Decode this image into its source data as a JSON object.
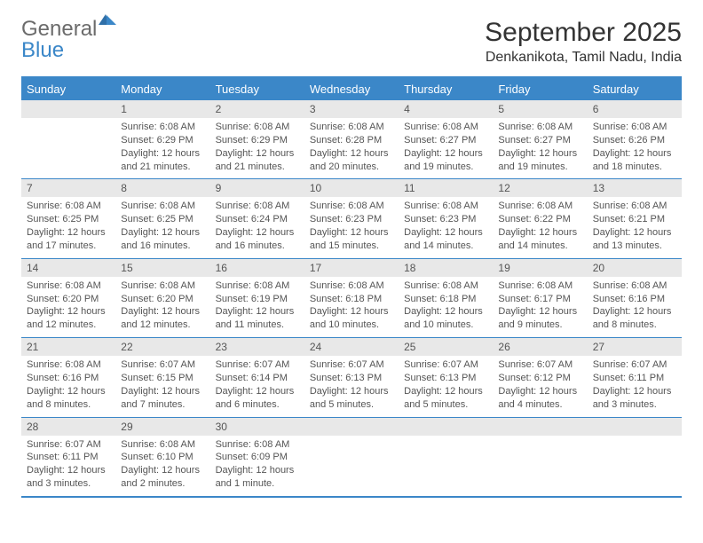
{
  "brand": {
    "word1": "General",
    "word2": "Blue"
  },
  "title": "September 2025",
  "location": "Denkanikota, Tamil Nadu, India",
  "colors": {
    "accent": "#3b87c8",
    "header_bg": "#3b87c8",
    "header_text": "#ffffff",
    "daynum_bg": "#e8e8e8",
    "body_text": "#555555",
    "title_text": "#333333"
  },
  "weekdays": [
    "Sunday",
    "Monday",
    "Tuesday",
    "Wednesday",
    "Thursday",
    "Friday",
    "Saturday"
  ],
  "weeks": [
    [
      {
        "n": "",
        "lines": []
      },
      {
        "n": "1",
        "lines": [
          "Sunrise: 6:08 AM",
          "Sunset: 6:29 PM",
          "Daylight: 12 hours and 21 minutes."
        ]
      },
      {
        "n": "2",
        "lines": [
          "Sunrise: 6:08 AM",
          "Sunset: 6:29 PM",
          "Daylight: 12 hours and 21 minutes."
        ]
      },
      {
        "n": "3",
        "lines": [
          "Sunrise: 6:08 AM",
          "Sunset: 6:28 PM",
          "Daylight: 12 hours and 20 minutes."
        ]
      },
      {
        "n": "4",
        "lines": [
          "Sunrise: 6:08 AM",
          "Sunset: 6:27 PM",
          "Daylight: 12 hours and 19 minutes."
        ]
      },
      {
        "n": "5",
        "lines": [
          "Sunrise: 6:08 AM",
          "Sunset: 6:27 PM",
          "Daylight: 12 hours and 19 minutes."
        ]
      },
      {
        "n": "6",
        "lines": [
          "Sunrise: 6:08 AM",
          "Sunset: 6:26 PM",
          "Daylight: 12 hours and 18 minutes."
        ]
      }
    ],
    [
      {
        "n": "7",
        "lines": [
          "Sunrise: 6:08 AM",
          "Sunset: 6:25 PM",
          "Daylight: 12 hours and 17 minutes."
        ]
      },
      {
        "n": "8",
        "lines": [
          "Sunrise: 6:08 AM",
          "Sunset: 6:25 PM",
          "Daylight: 12 hours and 16 minutes."
        ]
      },
      {
        "n": "9",
        "lines": [
          "Sunrise: 6:08 AM",
          "Sunset: 6:24 PM",
          "Daylight: 12 hours and 16 minutes."
        ]
      },
      {
        "n": "10",
        "lines": [
          "Sunrise: 6:08 AM",
          "Sunset: 6:23 PM",
          "Daylight: 12 hours and 15 minutes."
        ]
      },
      {
        "n": "11",
        "lines": [
          "Sunrise: 6:08 AM",
          "Sunset: 6:23 PM",
          "Daylight: 12 hours and 14 minutes."
        ]
      },
      {
        "n": "12",
        "lines": [
          "Sunrise: 6:08 AM",
          "Sunset: 6:22 PM",
          "Daylight: 12 hours and 14 minutes."
        ]
      },
      {
        "n": "13",
        "lines": [
          "Sunrise: 6:08 AM",
          "Sunset: 6:21 PM",
          "Daylight: 12 hours and 13 minutes."
        ]
      }
    ],
    [
      {
        "n": "14",
        "lines": [
          "Sunrise: 6:08 AM",
          "Sunset: 6:20 PM",
          "Daylight: 12 hours and 12 minutes."
        ]
      },
      {
        "n": "15",
        "lines": [
          "Sunrise: 6:08 AM",
          "Sunset: 6:20 PM",
          "Daylight: 12 hours and 12 minutes."
        ]
      },
      {
        "n": "16",
        "lines": [
          "Sunrise: 6:08 AM",
          "Sunset: 6:19 PM",
          "Daylight: 12 hours and 11 minutes."
        ]
      },
      {
        "n": "17",
        "lines": [
          "Sunrise: 6:08 AM",
          "Sunset: 6:18 PM",
          "Daylight: 12 hours and 10 minutes."
        ]
      },
      {
        "n": "18",
        "lines": [
          "Sunrise: 6:08 AM",
          "Sunset: 6:18 PM",
          "Daylight: 12 hours and 10 minutes."
        ]
      },
      {
        "n": "19",
        "lines": [
          "Sunrise: 6:08 AM",
          "Sunset: 6:17 PM",
          "Daylight: 12 hours and 9 minutes."
        ]
      },
      {
        "n": "20",
        "lines": [
          "Sunrise: 6:08 AM",
          "Sunset: 6:16 PM",
          "Daylight: 12 hours and 8 minutes."
        ]
      }
    ],
    [
      {
        "n": "21",
        "lines": [
          "Sunrise: 6:08 AM",
          "Sunset: 6:16 PM",
          "Daylight: 12 hours and 8 minutes."
        ]
      },
      {
        "n": "22",
        "lines": [
          "Sunrise: 6:07 AM",
          "Sunset: 6:15 PM",
          "Daylight: 12 hours and 7 minutes."
        ]
      },
      {
        "n": "23",
        "lines": [
          "Sunrise: 6:07 AM",
          "Sunset: 6:14 PM",
          "Daylight: 12 hours and 6 minutes."
        ]
      },
      {
        "n": "24",
        "lines": [
          "Sunrise: 6:07 AM",
          "Sunset: 6:13 PM",
          "Daylight: 12 hours and 5 minutes."
        ]
      },
      {
        "n": "25",
        "lines": [
          "Sunrise: 6:07 AM",
          "Sunset: 6:13 PM",
          "Daylight: 12 hours and 5 minutes."
        ]
      },
      {
        "n": "26",
        "lines": [
          "Sunrise: 6:07 AM",
          "Sunset: 6:12 PM",
          "Daylight: 12 hours and 4 minutes."
        ]
      },
      {
        "n": "27",
        "lines": [
          "Sunrise: 6:07 AM",
          "Sunset: 6:11 PM",
          "Daylight: 12 hours and 3 minutes."
        ]
      }
    ],
    [
      {
        "n": "28",
        "lines": [
          "Sunrise: 6:07 AM",
          "Sunset: 6:11 PM",
          "Daylight: 12 hours and 3 minutes."
        ]
      },
      {
        "n": "29",
        "lines": [
          "Sunrise: 6:08 AM",
          "Sunset: 6:10 PM",
          "Daylight: 12 hours and 2 minutes."
        ]
      },
      {
        "n": "30",
        "lines": [
          "Sunrise: 6:08 AM",
          "Sunset: 6:09 PM",
          "Daylight: 12 hours and 1 minute."
        ]
      },
      {
        "n": "",
        "lines": []
      },
      {
        "n": "",
        "lines": []
      },
      {
        "n": "",
        "lines": []
      },
      {
        "n": "",
        "lines": []
      }
    ]
  ]
}
